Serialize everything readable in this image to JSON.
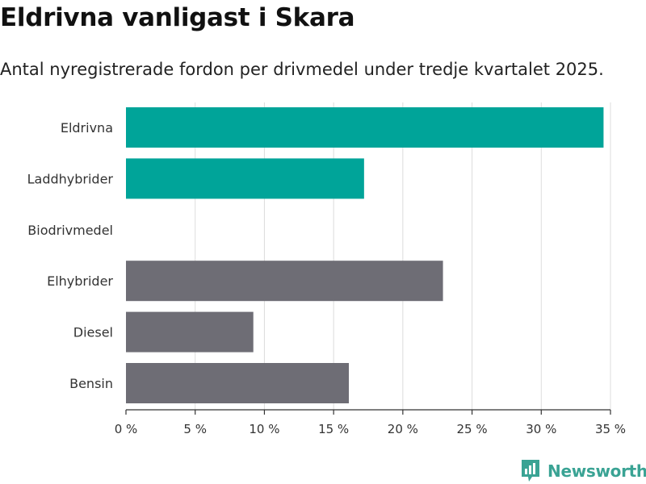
{
  "title": "Eldrivna vanligast i Skara",
  "subtitle": "Antal nyregistrerade fordon per drivmedel under tredje kvartalet 2025.",
  "brand": {
    "name": "Newsworthy",
    "color": "#3aa394"
  },
  "chart_data": {
    "type": "bar",
    "orientation": "horizontal",
    "categories": [
      "Eldrivna",
      "Laddhybrider",
      "Biodrivmedel",
      "Elhybrider",
      "Diesel",
      "Bensin"
    ],
    "values": [
      34.5,
      17.2,
      0,
      22.9,
      9.2,
      16.1
    ],
    "colors": [
      "#00a499",
      "#00a499",
      "#00a499",
      "#6e6d75",
      "#6e6d75",
      "#6e6d75"
    ],
    "xlim": [
      0,
      35
    ],
    "ticks": [
      0,
      5,
      10,
      15,
      20,
      25,
      30,
      35
    ],
    "tick_labels": [
      "0 %",
      "5 %",
      "10 %",
      "15 %",
      "20 %",
      "25 %",
      "30 %",
      "35 %"
    ],
    "grid": true,
    "xlabel": "",
    "ylabel": ""
  }
}
